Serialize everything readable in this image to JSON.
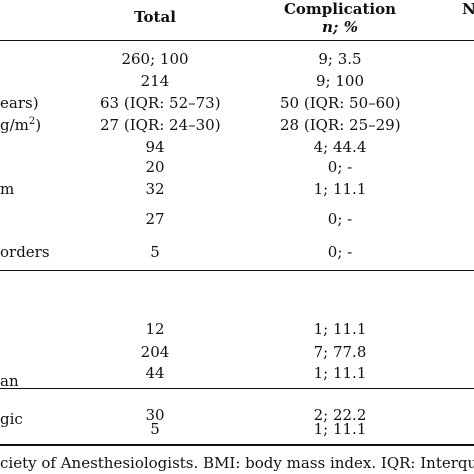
{
  "header": {
    "total": "Total",
    "complication": "Complication",
    "complication_sub": "n; %",
    "clipped_right": "N"
  },
  "rows": [
    {
      "label": "",
      "total": "260; 100",
      "comp": "9; 3.5"
    },
    {
      "label": "",
      "total": "214",
      "comp": "9; 100"
    },
    {
      "label": "ears)",
      "total": "63 (IQR: 52–73)",
      "comp": "50 (IQR: 50–60)"
    },
    {
      "label": "g/m",
      "label_sup": "2",
      "label_tail": ")",
      "total": "27 (IQR: 24–30)",
      "comp": "28 (IQR: 25–29)"
    },
    {
      "label": "",
      "total": "94",
      "comp": "4; 44.4"
    },
    {
      "label": "",
      "total": "20",
      "comp": "0; -"
    },
    {
      "label": "m",
      "total": "32",
      "comp": "1; 11.1"
    },
    {
      "label": "",
      "total": "27",
      "comp": "0; -"
    },
    {
      "label": "orders",
      "total": "5",
      "comp": "0; -"
    },
    {
      "label": "",
      "total": "12",
      "comp": "1; 11.1"
    },
    {
      "label": "",
      "total": "204",
      "comp": "7; 77.8"
    },
    {
      "label": "",
      "total": "44",
      "comp": "1; 11.1"
    },
    {
      "label": "an",
      "total": "30",
      "comp": "2; 22.2"
    },
    {
      "label": "gic",
      "total": "5",
      "comp": "1; 11.1"
    }
  ],
  "footnote": "ciety of Anesthesiologists. BMI: body mass index. IQR: Interquartile r"
}
